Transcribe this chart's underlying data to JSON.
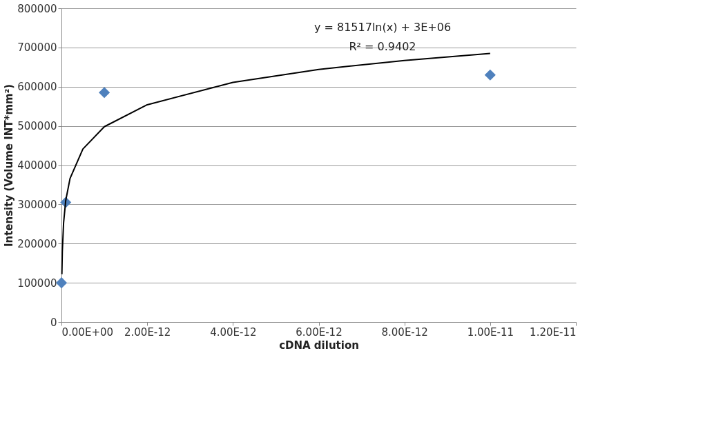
{
  "chart_data": {
    "type": "scatter",
    "xlabel": "cDNA dilution",
    "ylabel": "Intensity (Volume INT*mm²)",
    "xlim": [
      0,
      1.2e-11
    ],
    "xticks": [
      {
        "value": 0,
        "label": "0.00E+00"
      },
      {
        "value": 2e-12,
        "label": "2.00E-12"
      },
      {
        "value": 4e-12,
        "label": "4.00E-12"
      },
      {
        "value": 6e-12,
        "label": "6.00E-12"
      },
      {
        "value": 8e-12,
        "label": "8.00E-12"
      },
      {
        "value": 1e-11,
        "label": "1.00E-11"
      },
      {
        "value": 1.2e-11,
        "label": "1.20E-11"
      }
    ],
    "ylim": [
      0,
      800000
    ],
    "yticks": [
      0,
      100000,
      200000,
      300000,
      400000,
      500000,
      600000,
      700000,
      800000
    ],
    "grid": "y",
    "marker": "diamond",
    "annotations": [
      "y = 81517ln(x) + 3E+06",
      "R² = 0.9402"
    ],
    "series": [
      {
        "type": "scatter",
        "color": "#4f81bd",
        "x": [
          1e-15,
          1e-13,
          1e-12,
          1e-11
        ],
        "values": [
          100000,
          305000,
          585000,
          630000
        ]
      },
      {
        "type": "line",
        "marker": "none",
        "color": "#000000",
        "x": [
          1e-14,
          2e-14,
          5e-14,
          1e-13,
          2e-13,
          5e-13,
          1e-12,
          2e-12,
          4e-12,
          6e-12,
          8e-12,
          1e-11
        ],
        "values": [
          122000,
          179000,
          253000,
          310000,
          366000,
          441000,
          498000,
          554000,
          611000,
          644000,
          667000,
          685000
        ]
      }
    ]
  }
}
